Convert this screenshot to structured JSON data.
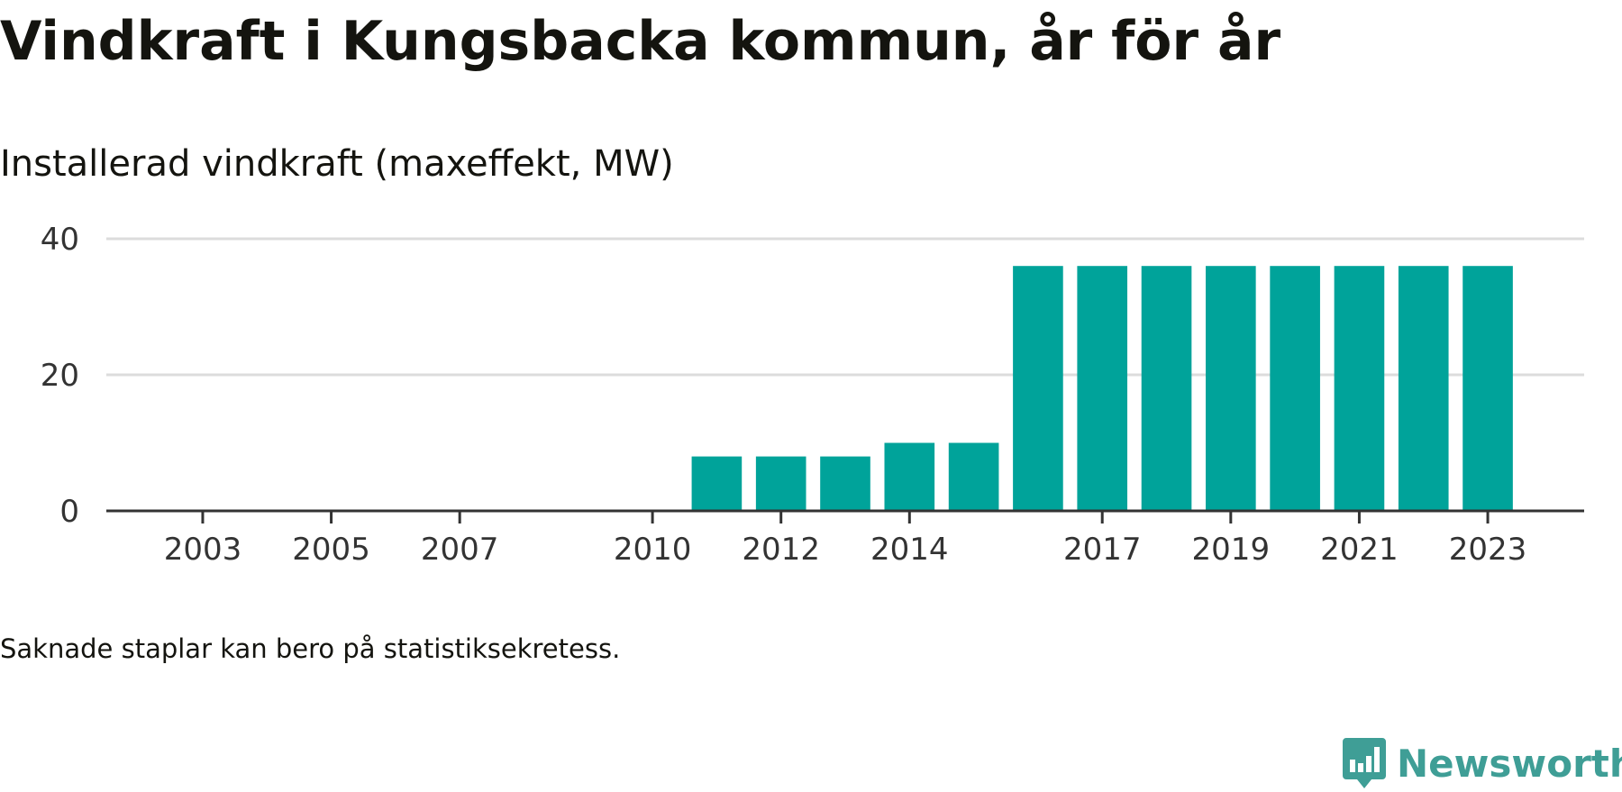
{
  "header": {
    "title": "Vindkraft i Kungsbacka kommun, år för år",
    "subtitle": "Installerad vindkraft (maxeffekt, MW)"
  },
  "footer": {
    "note": "Saknade staplar kan bero på statistiksekretess.",
    "brand": "Newsworthy",
    "brand_icon": "newsworthy-logo-icon"
  },
  "colors": {
    "bar": "#00a39a",
    "grid": "#dcdcdc",
    "axis": "#333333",
    "tick_text": "#333333",
    "brand": "#3f9e96"
  },
  "chart_data": {
    "type": "bar",
    "title": "Vindkraft i Kungsbacka kommun, år för år",
    "subtitle": "Installerad vindkraft (maxeffekt, MW)",
    "xlabel": "",
    "ylabel": "",
    "x_tick_labels": [
      "2003",
      "2005",
      "2007",
      "2010",
      "2012",
      "2014",
      "2017",
      "2019",
      "2021",
      "2023"
    ],
    "y_ticks": [
      0,
      20,
      40
    ],
    "ylim": [
      0,
      40
    ],
    "xlim": [
      2001.5,
      2024.5
    ],
    "grid": true,
    "legend": "none",
    "series": [
      {
        "x": [
          2011,
          2012,
          2013,
          2014,
          2015,
          2016,
          2017,
          2018,
          2019,
          2020,
          2021,
          2022,
          2023
        ],
        "values": [
          8,
          8,
          8,
          10,
          10,
          36,
          36,
          36,
          36,
          36,
          36,
          36,
          36
        ]
      }
    ]
  }
}
